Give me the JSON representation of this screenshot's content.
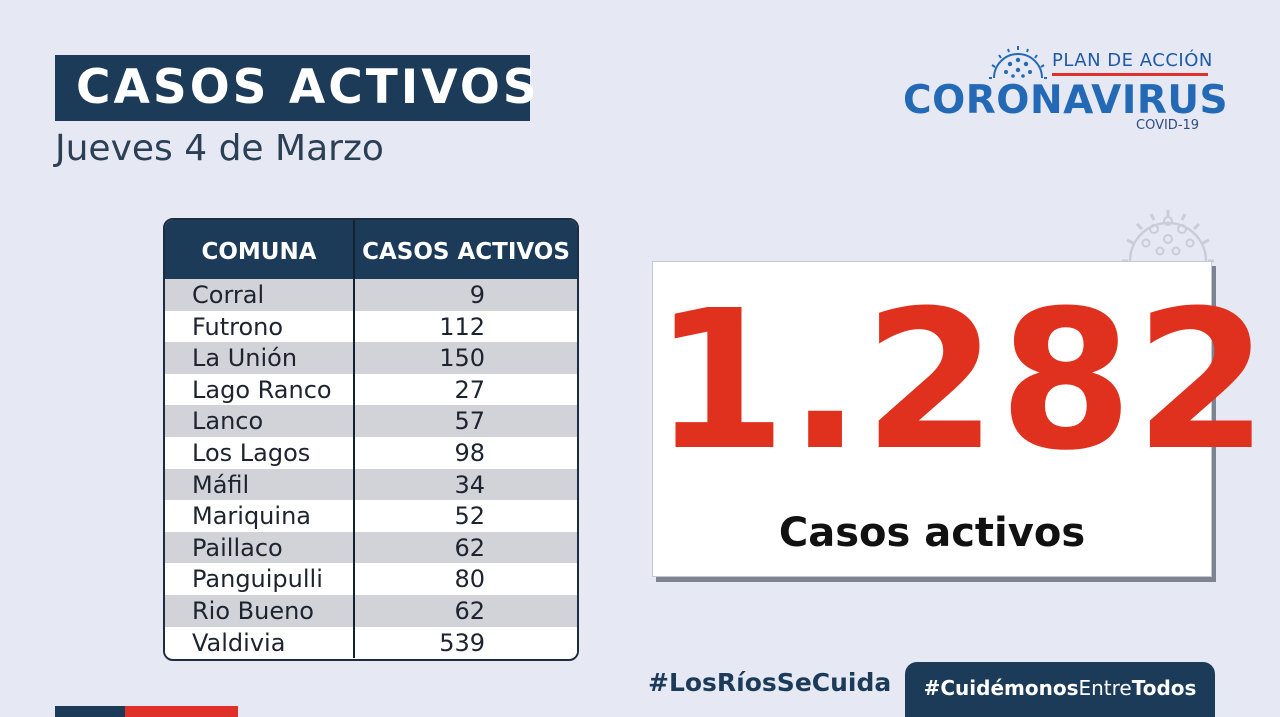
{
  "header": {
    "title": "CASOS ACTIVOS",
    "date": "Jueves 4  de Marzo"
  },
  "logo": {
    "plan": "PLAN DE ACCIÓN",
    "name": "CORONAVIRUS",
    "sub": "COVID-19",
    "icon": "virus-icon"
  },
  "table": {
    "headers": [
      "COMUNA",
      "CASOS ACTIVOS"
    ],
    "rows": [
      {
        "comuna": "Corral",
        "casos": "9"
      },
      {
        "comuna": "Futrono",
        "casos": "112"
      },
      {
        "comuna": "La Unión",
        "casos": "150"
      },
      {
        "comuna": "Lago Ranco",
        "casos": "27"
      },
      {
        "comuna": "Lanco",
        "casos": "57"
      },
      {
        "comuna": "Los Lagos",
        "casos": "98"
      },
      {
        "comuna": "Máfil",
        "casos": "34"
      },
      {
        "comuna": "Mariquina",
        "casos": "52"
      },
      {
        "comuna": "Paillaco",
        "casos": "62"
      },
      {
        "comuna": "Panguipulli",
        "casos": "80"
      },
      {
        "comuna": "Rio Bueno",
        "casos": "62"
      },
      {
        "comuna": "Valdivia",
        "casos": "539"
      }
    ]
  },
  "total": {
    "value": "1.282",
    "label": "Casos activos"
  },
  "footer": {
    "hashtag_regional": "#LosRíosSeCuida",
    "hashtag_bold_1": "#Cuidémonos",
    "hashtag_light": "Entre",
    "hashtag_bold_2": "Todos"
  },
  "colors": {
    "navy": "#1c3b58",
    "red": "#e0301e",
    "blue": "#2369b5",
    "background": "#e6e9f4"
  }
}
